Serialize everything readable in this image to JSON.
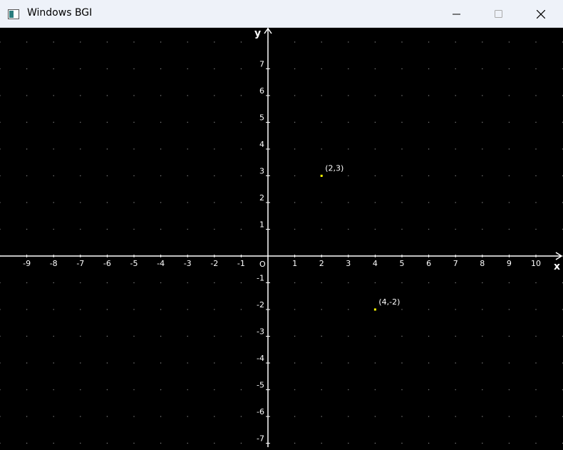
{
  "window": {
    "title": "Windows BGI"
  },
  "graph": {
    "x_axis_label": "x",
    "y_axis_label": "y",
    "origin_label": "O",
    "x_ticks": [
      -9,
      -8,
      -7,
      -6,
      -5,
      -4,
      -3,
      -2,
      -1,
      1,
      2,
      3,
      4,
      5,
      6,
      7,
      8,
      9,
      10
    ],
    "y_ticks": [
      7,
      6,
      5,
      4,
      3,
      2,
      1,
      -1,
      -2,
      -3,
      -4,
      -5,
      -6,
      -7
    ],
    "points": [
      {
        "x": 2,
        "y": 3,
        "label": "(2,3)"
      },
      {
        "x": 4,
        "y": -2,
        "label": "(4,-2)"
      }
    ],
    "colors": {
      "background": "#000000",
      "axes": "#ffffff",
      "grid_dots": "#808080",
      "point": "#ffff00",
      "text": "#ffffff"
    },
    "grid": "dotted"
  }
}
